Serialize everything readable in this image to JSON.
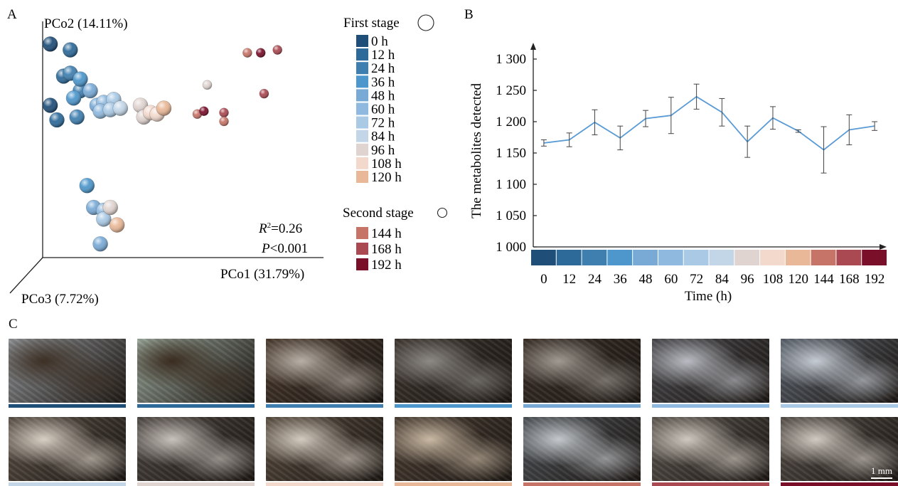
{
  "panel_labels": {
    "a": "A",
    "b": "B",
    "c": "C"
  },
  "chart_data": [
    {
      "type": "scatter",
      "title": "",
      "axes": {
        "x": "PCo1 (31.79%)",
        "y": "PCo2 (14.11%)",
        "z": "PCo3 (7.72%)"
      },
      "stats": {
        "r2_prefix": "R",
        "r2_sup": "2",
        "r2_value": "=0.26",
        "p_prefix": "P",
        "p_value": "<0.001"
      },
      "legend": {
        "stage1_title": "First stage",
        "stage2_title": "Second stage",
        "stage1": [
          {
            "label": "0 h",
            "color": "#1f4e79"
          },
          {
            "label": "12 h",
            "color": "#2d6a99"
          },
          {
            "label": "24 h",
            "color": "#3f7fb0"
          },
          {
            "label": "36 h",
            "color": "#4d97cc"
          },
          {
            "label": "48 h",
            "color": "#79aad6"
          },
          {
            "label": "60 h",
            "color": "#8fb9de"
          },
          {
            "label": "72 h",
            "color": "#a9c9e5"
          },
          {
            "label": "84 h",
            "color": "#c3d6e8"
          },
          {
            "label": "96 h",
            "color": "#e0d4d0"
          },
          {
            "label": "108 h",
            "color": "#f2d9cc"
          },
          {
            "label": "120 h",
            "color": "#e9b898"
          }
        ],
        "stage2": [
          {
            "label": "144 h",
            "color": "#c77468"
          },
          {
            "label": "168 h",
            "color": "#ab4952"
          },
          {
            "label": "192 h",
            "color": "#7a0f2a"
          }
        ]
      },
      "points": [
        {
          "group": "0 h",
          "x": -0.42,
          "y": 0.82,
          "size": "large"
        },
        {
          "group": "0 h",
          "x": -0.42,
          "y": 0.4,
          "size": "large"
        },
        {
          "group": "12 h",
          "x": -0.36,
          "y": 0.78,
          "size": "large"
        },
        {
          "group": "12 h",
          "x": -0.38,
          "y": 0.6,
          "size": "large"
        },
        {
          "group": "12 h",
          "x": -0.4,
          "y": 0.3,
          "size": "large"
        },
        {
          "group": "24 h",
          "x": -0.36,
          "y": 0.62,
          "size": "large"
        },
        {
          "group": "24 h",
          "x": -0.34,
          "y": 0.32,
          "size": "large"
        },
        {
          "group": "24 h",
          "x": -0.33,
          "y": 0.5,
          "size": "large"
        },
        {
          "group": "36 h",
          "x": -0.35,
          "y": 0.45,
          "size": "large"
        },
        {
          "group": "36 h",
          "x": -0.33,
          "y": 0.58,
          "size": "large"
        },
        {
          "group": "48 h",
          "x": -0.3,
          "y": 0.5,
          "size": "large"
        },
        {
          "group": "48 h",
          "x": -0.28,
          "y": 0.4,
          "size": "large"
        },
        {
          "group": "60 h",
          "x": -0.26,
          "y": 0.42,
          "size": "large"
        },
        {
          "group": "60 h",
          "x": -0.27,
          "y": 0.36,
          "size": "large"
        },
        {
          "group": "72 h",
          "x": -0.23,
          "y": 0.44,
          "size": "large"
        },
        {
          "group": "72 h",
          "x": -0.24,
          "y": 0.37,
          "size": "large"
        },
        {
          "group": "84 h",
          "x": -0.21,
          "y": 0.38,
          "size": "large"
        },
        {
          "group": "96 h",
          "x": -0.15,
          "y": 0.4,
          "size": "large"
        },
        {
          "group": "96 h",
          "x": -0.14,
          "y": 0.32,
          "size": "large"
        },
        {
          "group": "108 h",
          "x": -0.12,
          "y": 0.35,
          "size": "large"
        },
        {
          "group": "108 h",
          "x": -0.1,
          "y": 0.34,
          "size": "large"
        },
        {
          "group": "120 h",
          "x": -0.08,
          "y": 0.38,
          "size": "large"
        },
        {
          "group": "36 h",
          "x": -0.31,
          "y": -0.15,
          "size": "large"
        },
        {
          "group": "48 h",
          "x": -0.29,
          "y": -0.3,
          "size": "large"
        },
        {
          "group": "60 h",
          "x": -0.26,
          "y": -0.32,
          "size": "large"
        },
        {
          "group": "72 h",
          "x": -0.26,
          "y": -0.38,
          "size": "large"
        },
        {
          "group": "96 h",
          "x": -0.24,
          "y": -0.3,
          "size": "large"
        },
        {
          "group": "120 h",
          "x": -0.22,
          "y": -0.42,
          "size": "large"
        },
        {
          "group": "48 h",
          "x": -0.27,
          "y": -0.55,
          "size": "large"
        },
        {
          "group": "96 h",
          "x": 0.05,
          "y": 0.54,
          "size": "small"
        },
        {
          "group": "144 h",
          "x": 0.02,
          "y": 0.34,
          "size": "small"
        },
        {
          "group": "192 h",
          "x": 0.04,
          "y": 0.36,
          "size": "small"
        },
        {
          "group": "168 h",
          "x": 0.1,
          "y": 0.35,
          "size": "small"
        },
        {
          "group": "144 h",
          "x": 0.1,
          "y": 0.29,
          "size": "small"
        },
        {
          "group": "144 h",
          "x": 0.17,
          "y": 0.76,
          "size": "small"
        },
        {
          "group": "192 h",
          "x": 0.21,
          "y": 0.76,
          "size": "small"
        },
        {
          "group": "168 h",
          "x": 0.26,
          "y": 0.78,
          "size": "small"
        },
        {
          "group": "168 h",
          "x": 0.22,
          "y": 0.48,
          "size": "small"
        }
      ]
    },
    {
      "type": "line",
      "title": "",
      "xlabel": "Time (h)",
      "ylabel": "The metabolites detected",
      "ylim": [
        1000,
        1300
      ],
      "yticks": [
        "1 000",
        "1 050",
        "1 100",
        "1 150",
        "1 200",
        "1 250",
        "1 300"
      ],
      "ytick_values": [
        1000,
        1050,
        1100,
        1150,
        1200,
        1250,
        1300
      ],
      "categories": [
        "0",
        "12",
        "24",
        "36",
        "48",
        "60",
        "72",
        "84",
        "96",
        "108",
        "120",
        "144",
        "168",
        "192"
      ],
      "category_colors": [
        "#1f4e79",
        "#2d6a99",
        "#3f7fb0",
        "#4d97cc",
        "#79aad6",
        "#8fb9de",
        "#a9c9e5",
        "#c3d6e8",
        "#e0d4d0",
        "#f2d9cc",
        "#e9b898",
        "#c77468",
        "#ab4952",
        "#7a0f2a"
      ],
      "line_color": "#5b9bd5",
      "values": [
        1166,
        1171,
        1199,
        1174,
        1205,
        1210,
        1240,
        1215,
        1168,
        1206,
        1185,
        1155,
        1187,
        1193
      ],
      "errors": [
        5,
        11,
        20,
        19,
        13,
        29,
        20,
        22,
        25,
        18,
        2,
        37,
        24,
        7
      ]
    }
  ],
  "photos": {
    "row1": [
      {
        "base": "#8f9396",
        "accent": "#3d3025",
        "strip": "#1f4e79"
      },
      {
        "base": "#9aa89b",
        "accent": "#3a2b1f",
        "strip": "#2d6a99"
      },
      {
        "base": "#4a3a2e",
        "accent": "#b8b0a6",
        "strip": "#3f7fb0"
      },
      {
        "base": "#3e3630",
        "accent": "#8d8a86",
        "strip": "#4d97cc"
      },
      {
        "base": "#3a2f28",
        "accent": "#9f9a92",
        "strip": "#79aad6"
      },
      {
        "base": "#4a4a4e",
        "accent": "#b9bcc2",
        "strip": "#8fb9de"
      },
      {
        "base": "#5a626c",
        "accent": "#c6ccd4",
        "strip": "#a9c9e5"
      }
    ],
    "row2": [
      {
        "base": "#5c5248",
        "accent": "#d8d0c4",
        "strip": "#c3d6e8"
      },
      {
        "base": "#4e4743",
        "accent": "#c8c2bc",
        "strip": "#e0d4d0"
      },
      {
        "base": "#5a4d40",
        "accent": "#d3cbc0",
        "strip": "#f2d9cc"
      },
      {
        "base": "#4d4035",
        "accent": "#c9b9a4",
        "strip": "#e9b898"
      },
      {
        "base": "#4e5358",
        "accent": "#c4c8cc",
        "strip": "#c77468"
      },
      {
        "base": "#5d5750",
        "accent": "#cfc8bf",
        "strip": "#ab4952"
      },
      {
        "base": "#57504a",
        "accent": "#d1cac2",
        "strip": "#7a0f2a"
      }
    ],
    "scale_label": "1 mm"
  }
}
